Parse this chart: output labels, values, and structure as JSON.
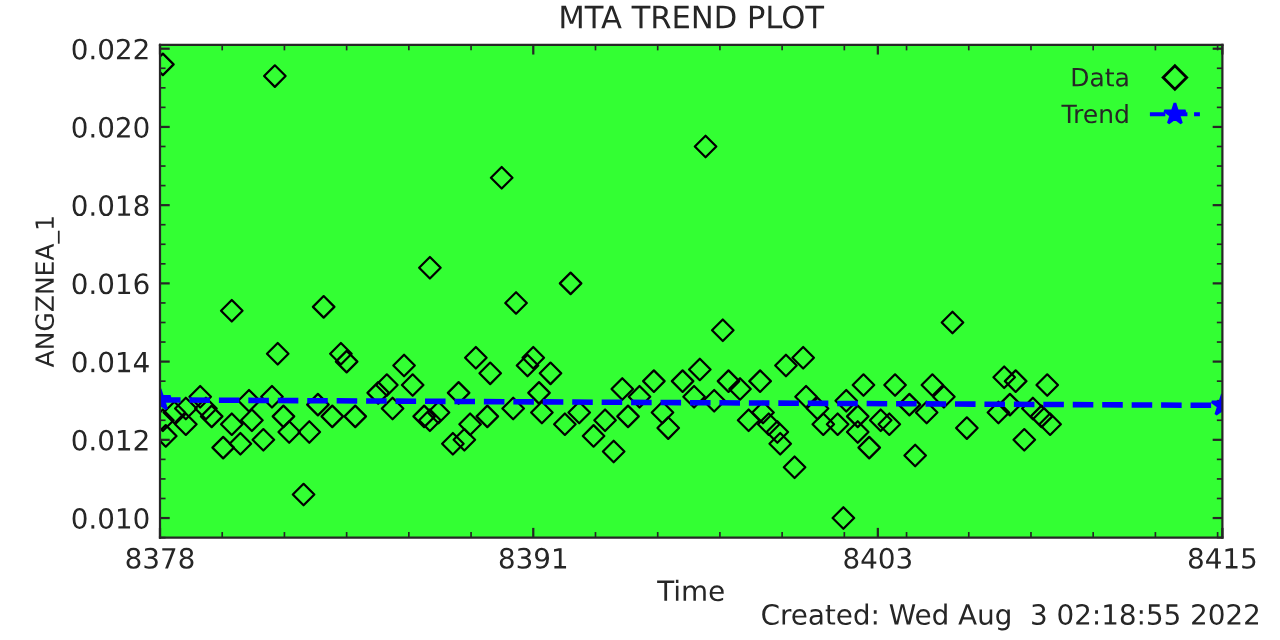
{
  "chart_data": {
    "type": "scatter",
    "title": "MTA TREND PLOT",
    "xlabel": "Time",
    "ylabel": "ANGZNEA_1",
    "annotations": [
      "Created: Wed Aug  3 02:18:55 2022"
    ],
    "xlim": [
      8378,
      8415
    ],
    "xticks": [
      8378,
      8391,
      8403,
      8415
    ],
    "ylim": [
      0.0095,
      0.0221
    ],
    "yticks": [
      {
        "value": 0.01,
        "label": "0.010"
      },
      {
        "value": 0.012,
        "label": "0.012"
      },
      {
        "value": 0.014,
        "label": "0.014"
      },
      {
        "value": 0.016,
        "label": "0.016"
      },
      {
        "value": 0.018,
        "label": "0.018"
      },
      {
        "value": 0.02,
        "label": "0.020"
      },
      {
        "value": 0.022,
        "label": "0.022"
      }
    ],
    "grid": false,
    "legend": "top right",
    "series": [
      {
        "name": "Data",
        "marker": "diamond",
        "color": "#000000",
        "x": [
          8378.1,
          8382.0,
          8380.5,
          8382.1,
          8383.7,
          8384.3,
          8384.5,
          8387.4,
          8386.5,
          8385.9,
          8385.6,
          8386.8,
          8389.0,
          8389.5,
          8388.4,
          8383.0,
          8380.2,
          8380.8,
          8381.6,
          8380.5,
          8381.2,
          8381.9,
          8382.5,
          8382.3,
          8383.2,
          8383.5,
          8384.0,
          8384.8,
          8378.1,
          8378.2,
          8378.9,
          8378.5,
          8378.9,
          8379.4,
          8379.8,
          8379.6,
          8381.1,
          8386.1,
          8387.2,
          8387.4,
          8387.7,
          8388.2,
          8388.6,
          8388.8,
          8389.4,
          8389.9,
          8397.0,
          8392.3,
          8390.4,
          8397.6,
          8391.0,
          8390.8,
          8391.6,
          8391.2,
          8390.3,
          8391.3,
          8392.1,
          8392.6,
          8393.1,
          8393.5,
          8393.8,
          8394.1,
          8394.3,
          8394.7,
          8395.2,
          8395.5,
          8395.7,
          8396.2,
          8396.6,
          8396.8,
          8397.3,
          8397.8,
          8398.2,
          8398.5,
          8398.9,
          8399.0,
          8399.2,
          8399.5,
          8399.6,
          8399.8,
          8400.1,
          8400.4,
          8400.5,
          8400.9,
          8401.1,
          8401.6,
          8401.8,
          8401.9,
          8402.3,
          8402.3,
          8402.5,
          8402.7,
          8403.6,
          8403.1,
          8403.4,
          8404.3,
          8404.1,
          8404.7,
          8404.9,
          8405.3,
          8405.6,
          8406.1,
          8407.2,
          8407.4,
          8407.6,
          8407.8,
          8408.1,
          8408.4,
          8408.7,
          8408.9,
          8409.0
        ],
        "values": [
          0.0216,
          0.0213,
          0.0153,
          0.0142,
          0.0154,
          0.0142,
          0.014,
          0.0164,
          0.0139,
          0.0134,
          0.0132,
          0.0134,
          0.0141,
          0.0137,
          0.0132,
          0.0106,
          0.0118,
          0.0119,
          0.012,
          0.0124,
          0.0125,
          0.0131,
          0.0122,
          0.0126,
          0.0122,
          0.0129,
          0.0126,
          0.0126,
          0.0125,
          0.0121,
          0.0124,
          0.0127,
          0.0128,
          0.0131,
          0.0126,
          0.0128,
          0.013,
          0.0128,
          0.0126,
          0.0125,
          0.0127,
          0.0119,
          0.012,
          0.0124,
          0.0126,
          0.0187,
          0.0195,
          0.016,
          0.0155,
          0.0148,
          0.0141,
          0.0139,
          0.0137,
          0.0132,
          0.0128,
          0.0127,
          0.0124,
          0.0127,
          0.0121,
          0.0125,
          0.0117,
          0.0133,
          0.0126,
          0.0131,
          0.0135,
          0.0127,
          0.0123,
          0.0135,
          0.0131,
          0.0138,
          0.013,
          0.0135,
          0.0133,
          0.0125,
          0.0135,
          0.0127,
          0.0124,
          0.0122,
          0.0119,
          0.0139,
          0.0113,
          0.0141,
          0.0131,
          0.0128,
          0.0124,
          0.0124,
          0.01,
          0.013,
          0.0122,
          0.0126,
          0.0134,
          0.0118,
          0.0134,
          0.0125,
          0.0124,
          0.0116,
          0.0129,
          0.0127,
          0.0134,
          0.0131,
          0.015,
          0.0123,
          0.0127,
          0.0136,
          0.0129,
          0.0135,
          0.012,
          0.0128,
          0.0126,
          0.0134,
          0.0124
        ]
      },
      {
        "name": "Trend",
        "type": "line",
        "marker": "star",
        "line_style": "dashed",
        "color": "#0000ff",
        "x": [
          8378,
          8415
        ],
        "values": [
          0.01302,
          0.01288
        ]
      }
    ]
  }
}
